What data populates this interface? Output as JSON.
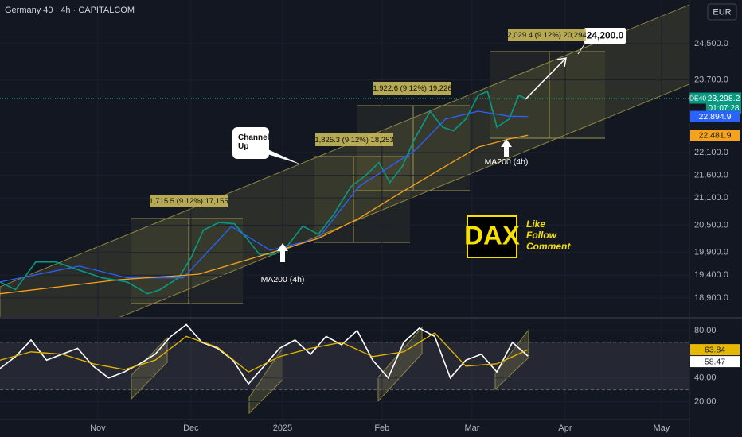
{
  "chart_data": [
    {
      "type": "line",
      "title": "Germany 40 · 4h · CAPITALCOM",
      "currency": "EUR",
      "symbol": "DE40",
      "countdown": "01:07:28",
      "xlim": [
        0,
        222
      ],
      "xticks": [
        {
          "value": 31.5,
          "label": "Nov"
        },
        {
          "value": 61.5,
          "label": "Dec"
        },
        {
          "value": 91,
          "label": "2025"
        },
        {
          "value": 123,
          "label": "Feb"
        },
        {
          "value": 152,
          "label": "Mar"
        },
        {
          "value": 182,
          "label": "Apr"
        },
        {
          "value": 213,
          "label": "May"
        }
      ],
      "ylim": [
        18460,
        25460
      ],
      "yticks": [
        {
          "value": 24500,
          "label": "24,500.0"
        },
        {
          "value": 23700,
          "label": "23,700.0"
        },
        {
          "value": 22100,
          "label": "22,100.0"
        },
        {
          "value": 21600,
          "label": "21,600.0"
        },
        {
          "value": 21100,
          "label": "21,100.0"
        },
        {
          "value": 20500,
          "label": "20,500.0"
        },
        {
          "value": 19900,
          "label": "19,900.0"
        },
        {
          "value": 19400,
          "label": "19,400.0"
        },
        {
          "value": 18900,
          "label": "18,900.0"
        }
      ],
      "grid": true,
      "series": [
        {
          "color": "#089981",
          "x": [
            0,
            5,
            11.5,
            18,
            25.5,
            33,
            41,
            47.5,
            51.5,
            57.5,
            61.5,
            65.5,
            70.5,
            75.5,
            79.5,
            83.5,
            88.5,
            92.5,
            97.5,
            102.5,
            107.5,
            113,
            118,
            122,
            125.5,
            129.5,
            133.5,
            138.5,
            142.5,
            146,
            150,
            154,
            157,
            160,
            164,
            167,
            169
          ],
          "values": [
            19250,
            19080,
            19690,
            19690,
            19510,
            19340,
            19250,
            18990,
            19080,
            19340,
            19780,
            20390,
            20560,
            20530,
            20210,
            19860,
            19860,
            20040,
            20480,
            20300,
            20740,
            21350,
            21610,
            21880,
            21440,
            21790,
            22400,
            23010,
            22660,
            22580,
            22840,
            23360,
            23450,
            22660,
            22840,
            23360,
            23298.2
          ],
          "value_labels": [
            null,
            null,
            null,
            null,
            null,
            null,
            null,
            null,
            null,
            null,
            null,
            null,
            null,
            null,
            null,
            null,
            null,
            null,
            null,
            null,
            null,
            null,
            null,
            null,
            null,
            null,
            null,
            null,
            null,
            null,
            null,
            null,
            null,
            null,
            null,
            null,
            "23,298.2"
          ]
        },
        {
          "color": "#2962ff",
          "x": [
            0,
            25.5,
            41,
            59,
            74.5,
            87,
            102.5,
            115.5,
            133.5,
            143.5,
            154,
            164,
            170
          ],
          "values": [
            19250,
            19600,
            19340,
            19340,
            20470,
            19950,
            20210,
            21350,
            22140,
            22840,
            23010,
            22900,
            22894.9
          ],
          "value_labels": [
            null,
            null,
            null,
            null,
            null,
            null,
            null,
            null,
            null,
            null,
            null,
            null,
            "22,894.9"
          ]
        },
        {
          "color": "#f7a21b",
          "x": [
            0,
            38.5,
            64,
            90,
            102.5,
            115.5,
            128,
            141,
            154,
            164,
            170
          ],
          "values": [
            18990,
            19300,
            19420,
            19950,
            20210,
            20650,
            21170,
            21700,
            22220,
            22400,
            22481.9
          ],
          "value_labels": [
            null,
            null,
            null,
            null,
            null,
            null,
            null,
            null,
            null,
            null,
            "22,481.9"
          ]
        }
      ],
      "annotations": {
        "channel": "Channel Up",
        "support": [
          "MA200 (4h)",
          "MA200 (4h)"
        ],
        "measures": [
          "1,715.5 (9.12%) 17,155",
          "1,825.3 (9.12%) 18,253",
          "1,922.6 (9.12%) 19,226",
          "2,029.4 (9.12%) 20,294"
        ],
        "target": "24,200.0",
        "logo": "DAX",
        "cta": [
          "Like",
          "Follow",
          "Comment"
        ]
      }
    },
    {
      "type": "line",
      "ylim": [
        5,
        90
      ],
      "yticks": [
        {
          "value": 80,
          "label": "80.00"
        },
        {
          "value": 40,
          "label": "40.00"
        },
        {
          "value": 20,
          "label": "20.00"
        }
      ],
      "bands": [
        30,
        70
      ],
      "series": [
        {
          "color": "#ffffff",
          "x": [
            0,
            5,
            10,
            15,
            20,
            25,
            30,
            35,
            40,
            45,
            50,
            55,
            60,
            65,
            70,
            75,
            80,
            85,
            90,
            95,
            100,
            105,
            110,
            115,
            120,
            125,
            130,
            135,
            140,
            145,
            150,
            155,
            160,
            165,
            170
          ],
          "values": [
            48,
            58,
            72,
            55,
            60,
            65,
            50,
            40,
            45,
            52,
            60,
            75,
            85,
            70,
            65,
            55,
            35,
            50,
            65,
            72,
            60,
            75,
            68,
            80,
            55,
            40,
            70,
            82,
            75,
            40,
            55,
            60,
            45,
            70,
            58.47
          ]
        },
        {
          "color": "#e6b800",
          "x": [
            0,
            10,
            20,
            30,
            40,
            50,
            60,
            70,
            80,
            90,
            100,
            110,
            120,
            130,
            140,
            150,
            160,
            170
          ],
          "values": [
            55,
            62,
            60,
            52,
            47,
            55,
            75,
            66,
            45,
            58,
            65,
            70,
            58,
            62,
            78,
            50,
            52,
            63.84
          ]
        }
      ]
    }
  ]
}
